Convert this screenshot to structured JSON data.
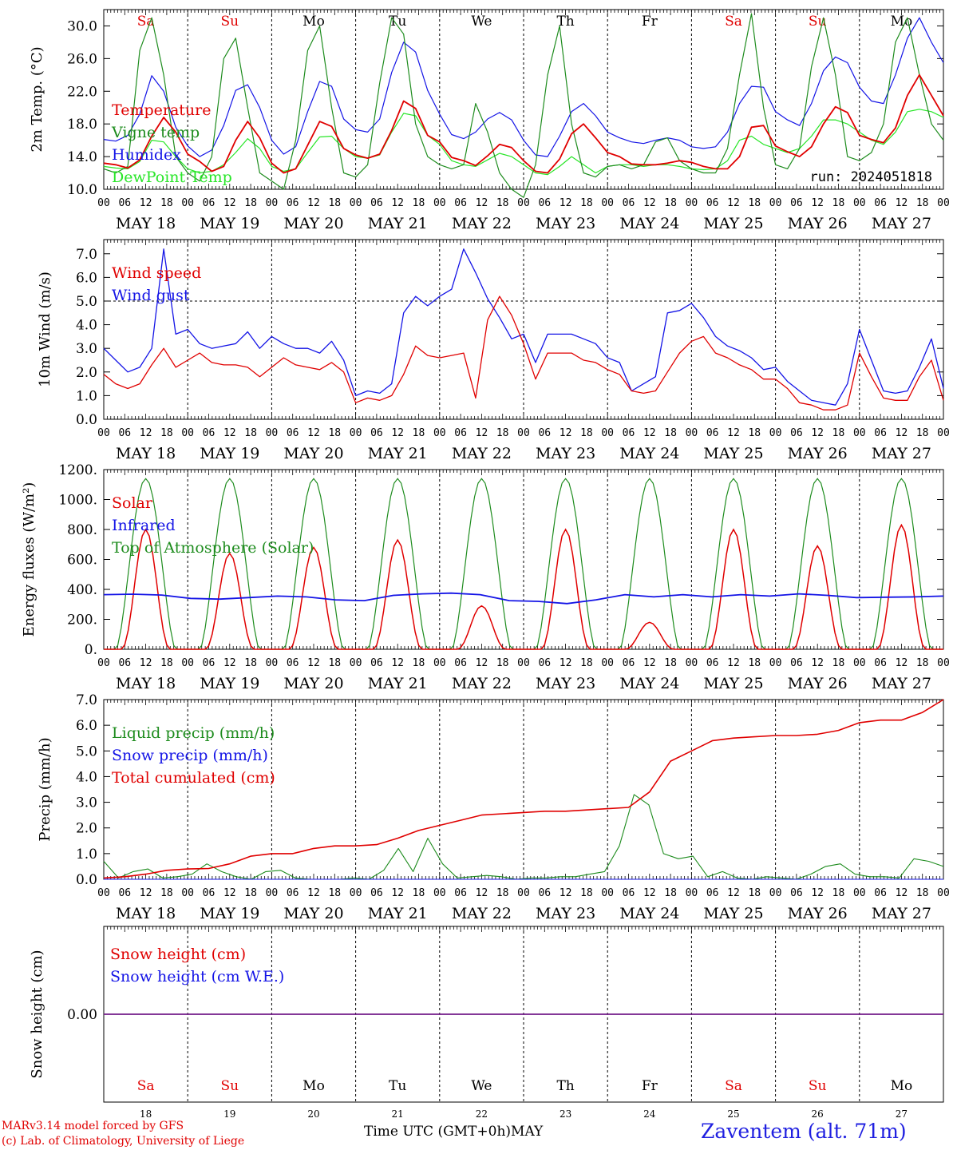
{
  "ticks_hours": [
    "00",
    "06",
    "12",
    "18"
  ],
  "tick_end": "00",
  "dates": [
    "MAY 18",
    "MAY 19",
    "MAY 20",
    "MAY 21",
    "MAY 22",
    "MAY 23",
    "MAY 24",
    "MAY 25",
    "MAY 26",
    "MAY 27"
  ],
  "weekdays": [
    "Sa",
    "Su",
    "Mo",
    "Tu",
    "We",
    "Th",
    "Fr",
    "Sa",
    "Su",
    "Mo"
  ],
  "weekday_colors": [
    "#e00000",
    "#e00000",
    "#000000",
    "#000000",
    "#000000",
    "#000000",
    "#000000",
    "#e00000",
    "#e00000",
    "#000000"
  ],
  "bottom_day_numbers": [
    "18",
    "19",
    "20",
    "21",
    "22",
    "23",
    "24",
    "25",
    "26",
    "27"
  ],
  "footer": {
    "credit_line1": "MARv3.14 model forced by GFS",
    "credit_line2": "(c) Lab. of Climatology, University of Liege",
    "xlabel": "Time UTC (GMT+0h)",
    "month": "MAY",
    "station": "Zaventem (alt. 71m)"
  },
  "chart_data": [
    {
      "type": "line",
      "ylabel": "2m Temp. (°C)",
      "ylim": [
        10,
        32
      ],
      "yticks": [
        "10.0",
        "14.0",
        "18.0",
        "22.0",
        "26.0",
        "30.0"
      ],
      "annotation": "run: 2024051818",
      "series": [
        {
          "name": "Temperature",
          "color": "#e00000",
          "values": [
            13.2,
            13.0,
            12.6,
            13.6,
            16.5,
            18.8,
            17.0,
            14.3,
            13.4,
            12.2,
            12.8,
            16.0,
            18.3,
            16.3,
            13.2,
            12.0,
            12.5,
            15.4,
            18.3,
            17.7,
            15.0,
            14.2,
            13.8,
            14.3,
            17.2,
            20.8,
            19.9,
            16.6,
            15.8,
            13.9,
            13.5,
            12.9,
            14.1,
            15.5,
            15.1,
            13.5,
            12.2,
            12.0,
            13.7,
            16.8,
            18.0,
            16.3,
            14.5,
            14.0,
            13.1,
            13.0,
            13.0,
            13.2,
            13.5,
            13.3,
            12.8,
            12.5,
            12.5,
            14.0,
            17.6,
            17.8,
            15.3,
            14.6,
            14.0,
            15.2,
            18.0,
            20.1,
            19.4,
            16.6,
            16.1,
            15.7,
            17.5,
            21.5,
            24.0,
            21.5,
            19.0
          ]
        },
        {
          "name": "Vigne temp",
          "color": "#1e8c1e",
          "values": [
            12.5,
            12.0,
            12.8,
            27.0,
            31.0,
            24.0,
            14.0,
            12.0,
            11.0,
            14.0,
            26.0,
            28.5,
            20.0,
            12.0,
            11.0,
            10.0,
            16.0,
            27.0,
            30.0,
            20.0,
            12.0,
            11.5,
            13.0,
            23.0,
            31.0,
            29.0,
            18.0,
            14.0,
            13.0,
            12.5,
            13.0,
            20.5,
            17.0,
            12.0,
            10.0,
            9.0,
            13.0,
            24.0,
            30.0,
            18.0,
            12.0,
            11.5,
            12.8,
            13.0,
            12.5,
            13.0,
            15.8,
            16.3,
            13.5,
            12.5,
            12.0,
            12.0,
            15.0,
            24.0,
            31.5,
            20.0,
            13.0,
            12.5,
            15.0,
            25.0,
            31.0,
            24.0,
            14.0,
            13.5,
            14.5,
            18.0,
            28.0,
            31.0,
            24.0,
            18.0,
            16.0
          ]
        },
        {
          "name": "Humidex",
          "color": "#1414e6",
          "values": [
            16.1,
            15.9,
            16.6,
            19.2,
            23.9,
            22.0,
            17.6,
            15.3,
            14.0,
            14.8,
            17.8,
            22.1,
            22.8,
            20.0,
            16.0,
            14.3,
            15.2,
            19.5,
            23.2,
            22.6,
            18.6,
            17.3,
            17.0,
            18.6,
            24.3,
            28.0,
            26.8,
            22.1,
            19.2,
            16.7,
            16.2,
            17.0,
            18.6,
            19.4,
            18.5,
            16.0,
            14.2,
            14.0,
            16.5,
            19.5,
            20.5,
            19.0,
            17.0,
            16.3,
            15.8,
            15.6,
            16.0,
            16.3,
            16.0,
            15.2,
            15.0,
            15.2,
            17.0,
            20.5,
            22.6,
            22.5,
            19.5,
            18.5,
            17.8,
            20.5,
            24.5,
            26.2,
            25.5,
            22.5,
            20.8,
            20.5,
            24.0,
            28.5,
            31.0,
            28.0,
            25.5
          ]
        },
        {
          "name": "DewPoint Temp",
          "color": "#28e628",
          "values": [
            12.8,
            12.6,
            12.5,
            13.4,
            16.0,
            15.8,
            14.0,
            12.5,
            12.0,
            12.2,
            13.0,
            14.5,
            16.2,
            15.0,
            12.8,
            12.2,
            12.5,
            14.5,
            16.4,
            16.5,
            15.0,
            14.0,
            13.8,
            14.2,
            17.0,
            19.3,
            19.0,
            16.6,
            15.5,
            13.5,
            13.0,
            12.8,
            13.6,
            14.4,
            14.0,
            13.0,
            12.0,
            11.8,
            12.8,
            14.0,
            13.0,
            12.0,
            12.8,
            13.0,
            13.0,
            12.8,
            13.0,
            13.0,
            12.8,
            12.5,
            12.4,
            12.5,
            13.5,
            16.0,
            16.5,
            15.5,
            15.0,
            14.5,
            15.0,
            16.5,
            18.5,
            18.5,
            18.0,
            17.0,
            16.0,
            15.5,
            17.0,
            19.5,
            19.8,
            19.5,
            18.8
          ]
        }
      ]
    },
    {
      "type": "line",
      "ylabel": "10m Wind (m/s)",
      "ylim": [
        0,
        7.6
      ],
      "yticks": [
        "0.0",
        "1.0",
        "2.0",
        "3.0",
        "4.0",
        "5.0",
        "6.0",
        "7.0"
      ],
      "reference_line": 5.0,
      "series": [
        {
          "name": "Wind speed",
          "color": "#e00000",
          "values": [
            1.9,
            1.5,
            1.3,
            1.5,
            2.3,
            3.0,
            2.2,
            2.5,
            2.8,
            2.4,
            2.3,
            2.3,
            2.2,
            1.8,
            2.2,
            2.6,
            2.3,
            2.2,
            2.1,
            2.4,
            2.0,
            0.7,
            0.9,
            0.8,
            1.0,
            1.9,
            3.1,
            2.7,
            2.6,
            2.7,
            2.8,
            0.9,
            4.2,
            5.2,
            4.4,
            3.2,
            1.7,
            2.8,
            2.8,
            2.8,
            2.5,
            2.4,
            2.1,
            1.9,
            1.2,
            1.1,
            1.2,
            2.0,
            2.8,
            3.3,
            3.5,
            2.8,
            2.6,
            2.3,
            2.1,
            1.7,
            1.7,
            1.3,
            0.7,
            0.6,
            0.4,
            0.4,
            0.6,
            2.8,
            1.8,
            0.9,
            0.8,
            0.8,
            1.8,
            2.5,
            0.8
          ]
        },
        {
          "name": "Wind gust",
          "color": "#1414e6",
          "values": [
            3.0,
            2.5,
            2.0,
            2.2,
            3.0,
            7.2,
            3.6,
            3.8,
            3.2,
            3.0,
            3.1,
            3.2,
            3.7,
            3.0,
            3.5,
            3.2,
            3.0,
            3.0,
            2.8,
            3.3,
            2.5,
            1.0,
            1.2,
            1.1,
            1.5,
            4.5,
            5.2,
            4.8,
            5.2,
            5.5,
            7.2,
            6.2,
            5.1,
            4.3,
            3.4,
            3.6,
            2.4,
            3.6,
            3.6,
            3.6,
            3.4,
            3.2,
            2.6,
            2.4,
            1.2,
            1.5,
            1.8,
            4.5,
            4.6,
            4.9,
            4.3,
            3.5,
            3.1,
            2.9,
            2.6,
            2.1,
            2.2,
            1.6,
            1.2,
            0.8,
            0.7,
            0.6,
            1.5,
            3.8,
            2.5,
            1.2,
            1.1,
            1.2,
            2.2,
            3.4,
            1.3
          ]
        }
      ]
    },
    {
      "type": "line",
      "ylabel": "Energy fluxes (W/m²)",
      "ylim": [
        0,
        1200
      ],
      "yticks": [
        "0.",
        "200.",
        "400.",
        "600.",
        "800.",
        "1000.",
        "1200."
      ],
      "series": [
        {
          "name": "Solar",
          "color": "#e00000",
          "peaks": [
            800,
            640,
            680,
            730,
            290,
            800,
            180,
            800,
            690,
            830
          ]
        },
        {
          "name": "Infrared",
          "color": "#1414e6",
          "values": [
            365,
            368,
            362,
            340,
            335,
            345,
            355,
            350,
            330,
            325,
            360,
            370,
            375,
            365,
            325,
            320,
            305,
            330,
            365,
            350,
            365,
            350,
            365,
            355,
            370,
            360,
            345,
            348,
            350,
            355
          ]
        },
        {
          "name": "Top of Atmosphere (Solar)",
          "color": "#1e8c1e",
          "peak": 1140
        }
      ]
    },
    {
      "type": "line",
      "ylabel": "Precip (mm/h)",
      "ylim": [
        0,
        7.0
      ],
      "yticks": [
        "0.0",
        "1.0",
        "2.0",
        "3.0",
        "4.0",
        "5.0",
        "6.0",
        "7.0"
      ],
      "series": [
        {
          "name": "Liquid precip (mm/h)",
          "color": "#1e8c1e",
          "values": [
            0.7,
            0.05,
            0.3,
            0.4,
            0.05,
            0.1,
            0.2,
            0.6,
            0.3,
            0.1,
            0.0,
            0.3,
            0.35,
            0.05,
            0.0,
            0.0,
            0.0,
            0.05,
            0.0,
            0.35,
            1.2,
            0.3,
            1.6,
            0.6,
            0.05,
            0.1,
            0.15,
            0.1,
            0.0,
            0.05,
            0.05,
            0.1,
            0.1,
            0.2,
            0.3,
            1.3,
            3.3,
            2.9,
            1.0,
            0.8,
            0.9,
            0.1,
            0.3,
            0.05,
            0.0,
            0.1,
            0.05,
            0.0,
            0.2,
            0.5,
            0.6,
            0.2,
            0.1,
            0.1,
            0.05,
            0.8,
            0.7,
            0.5
          ]
        },
        {
          "name": "Snow precip (mm/h)",
          "color": "#1414e6",
          "values": [
            0,
            0
          ]
        },
        {
          "name": "Total cumulated (cm)",
          "color": "#e00000",
          "values": [
            0.05,
            0.1,
            0.2,
            0.35,
            0.4,
            0.42,
            0.6,
            0.9,
            1.0,
            1.0,
            1.2,
            1.3,
            1.3,
            1.35,
            1.6,
            1.9,
            2.1,
            2.3,
            2.5,
            2.55,
            2.6,
            2.65,
            2.65,
            2.7,
            2.75,
            2.8,
            3.4,
            4.6,
            5.0,
            5.4,
            5.5,
            5.55,
            5.6,
            5.6,
            5.65,
            5.8,
            6.1,
            6.2,
            6.2,
            6.5,
            7.0
          ]
        }
      ]
    },
    {
      "type": "line",
      "ylabel": "Snow height (cm)",
      "yticks": [
        "0.00"
      ],
      "series": [
        {
          "name": "Snow height (cm)",
          "color": "#e00000",
          "values": [
            0,
            0
          ]
        },
        {
          "name": "Snow height (cm W.E.)",
          "color": "#1414e6",
          "values": [
            0,
            0
          ]
        }
      ]
    }
  ]
}
